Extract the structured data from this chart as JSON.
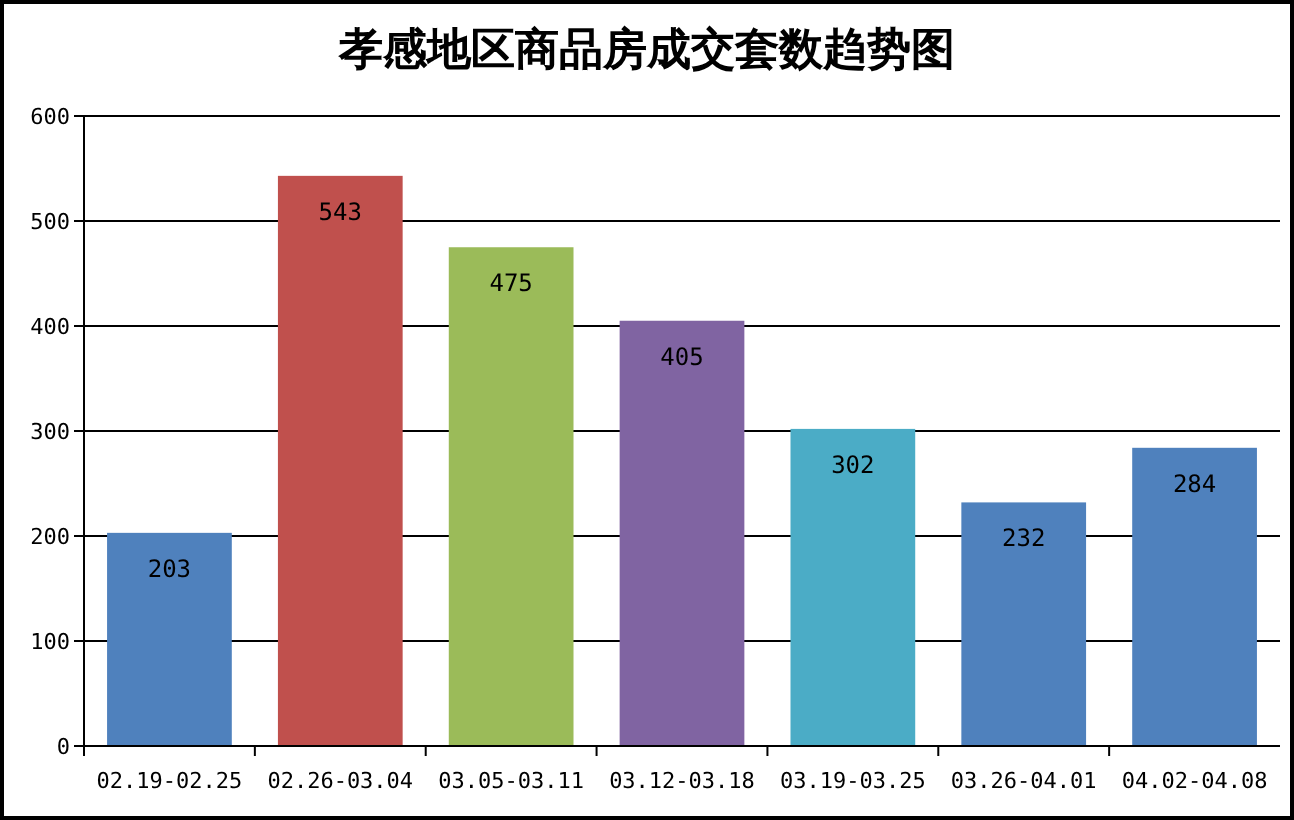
{
  "chart_data": {
    "type": "bar",
    "title": "孝感地区商品房成交套数趋势图",
    "categories": [
      "02.19-02.25",
      "02.26-03.04",
      "03.05-03.11",
      "03.12-03.18",
      "03.19-03.25",
      "03.26-04.01",
      "04.02-04.08"
    ],
    "values": [
      203,
      543,
      475,
      405,
      302,
      232,
      284
    ],
    "colors": [
      "#4f81bd",
      "#c0504d",
      "#9bbb59",
      "#8064a2",
      "#4bacc6",
      "#4f81bd",
      "#4f81bd"
    ],
    "ylim": [
      0,
      600
    ],
    "yticks": [
      0,
      100,
      200,
      300,
      400,
      500,
      600
    ],
    "grid": "y",
    "data_labels": true
  }
}
